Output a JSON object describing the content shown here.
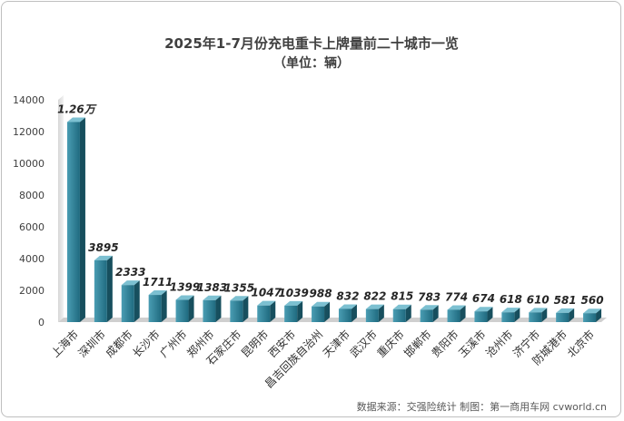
{
  "chart_data": {
    "type": "bar",
    "title": "2025年1-7月份充电重卡上牌量前二十城市一览",
    "subtitle": "（单位：辆）",
    "categories": [
      "上海市",
      "深圳市",
      "成都市",
      "长沙市",
      "广州市",
      "郑州市",
      "石家庄市",
      "昆明市",
      "西安市",
      "昌吉回族自治州",
      "天津市",
      "武汉市",
      "重庆市",
      "邯郸市",
      "贵阳市",
      "玉溪市",
      "沧州市",
      "济宁市",
      "防城港市",
      "北京市"
    ],
    "values": [
      12600,
      3895,
      2333,
      1711,
      1399,
      1383,
      1355,
      1047,
      1039,
      988,
      832,
      822,
      815,
      783,
      774,
      674,
      618,
      610,
      581,
      560
    ],
    "value_labels": [
      "1.26万",
      "3895",
      "2333",
      "1711",
      "1399",
      "1383",
      "1355",
      "1047",
      "1039",
      "988",
      "832",
      "822",
      "815",
      "783",
      "774",
      "674",
      "618",
      "610",
      "581",
      "560"
    ],
    "ylim": [
      0,
      14000
    ],
    "yticks": [
      0,
      2000,
      4000,
      6000,
      8000,
      10000,
      12000,
      14000
    ],
    "grid": false,
    "legend": "none",
    "colors": {
      "bar_front_light": "#4a9db3",
      "bar_front_dark": "#1f6a7f",
      "bar_side": "#174f5e",
      "bar_top": "#7cc0d1",
      "wall": "#e2e2e2",
      "floor": "#cfcfcf"
    },
    "source": "数据来源：交强险统计   制图：第一商用车网 cvworld.cn"
  }
}
